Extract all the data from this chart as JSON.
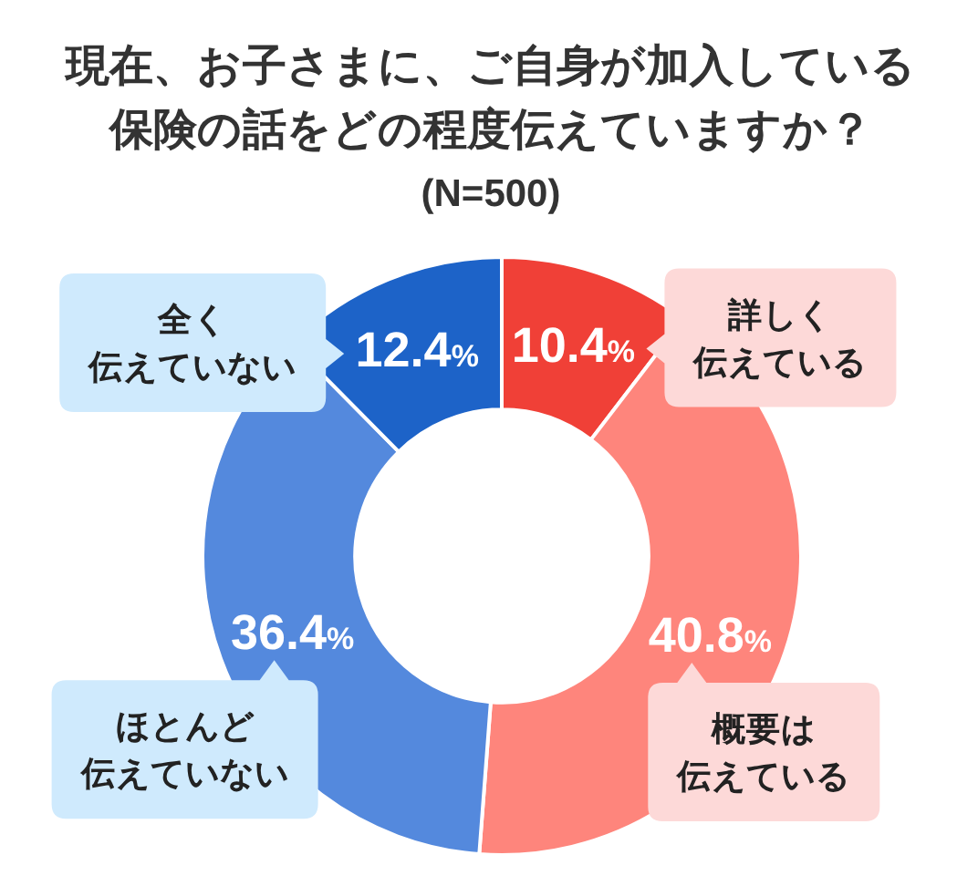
{
  "chart_data": {
    "type": "donut",
    "title": "現在、お子さまに、ご自身が加入している保険の話をどの程度伝えていますか？",
    "subtitle": "(N=500)",
    "categories": [
      "詳しく伝えている",
      "概要は伝えている",
      "ほとんど伝えていない",
      "全く伝えていない"
    ],
    "values": [
      10.4,
      40.8,
      36.4,
      12.4
    ],
    "colors": [
      "#f04037",
      "#fe857c",
      "#5489dd",
      "#1d63c8"
    ],
    "value_labels": [
      "10.4%",
      "40.8%",
      "36.4%",
      "12.4%"
    ]
  }
}
